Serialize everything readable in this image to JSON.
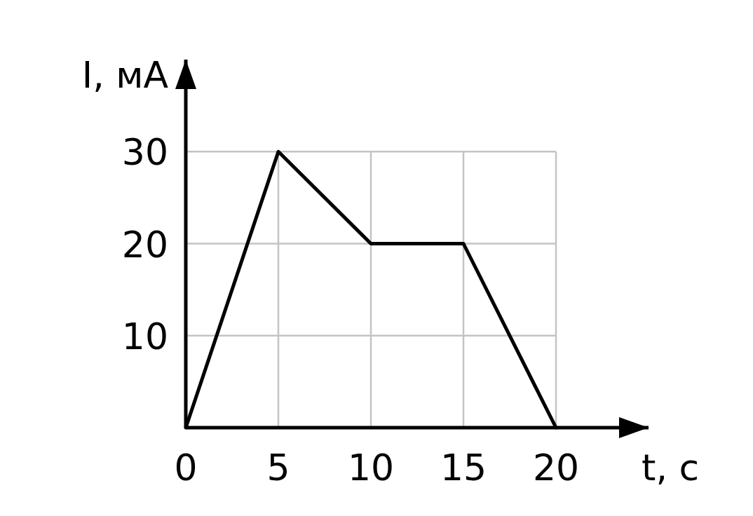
{
  "chart_data": {
    "type": "line",
    "xlabel": "t, с",
    "ylabel": "I, мА",
    "x": [
      0,
      5,
      10,
      15,
      20
    ],
    "series": [
      {
        "color": "#000000",
        "values": [
          0,
          30,
          20,
          20,
          0
        ]
      }
    ],
    "xlim": [
      0,
      25
    ],
    "ylim": [
      0,
      40
    ],
    "xticks": [
      0,
      5,
      10,
      15,
      20
    ],
    "yticks": [
      10,
      20,
      30
    ],
    "grid": true,
    "marker": "none",
    "line_style": "solid"
  }
}
